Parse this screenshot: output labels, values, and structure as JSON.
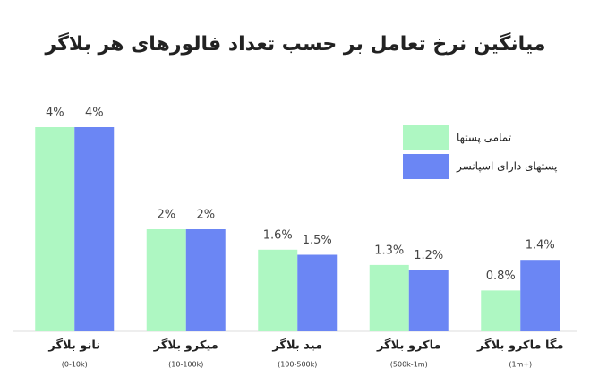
{
  "chart_data": {
    "type": "bar",
    "title": "میانگین نرخ تعامل بر حسب تعداد فالورهای هر بلاگر",
    "categories": [
      "نانو بلاگر",
      "میکرو بلاگر",
      "مید بلاگر",
      "ماکرو بلاگر",
      "مگا ماکرو بلاگر"
    ],
    "category_ranges": [
      "(0-10k)",
      "(10-100k)",
      "(100-500k)",
      "(500k-1m)",
      "(1m+)"
    ],
    "series": [
      {
        "name": "تمامی پستها",
        "color": "#aef7c2",
        "values": [
          4,
          2,
          1.6,
          1.3,
          0.8
        ],
        "value_labels": [
          "4%",
          "2%",
          "1.6%",
          "1.3%",
          "0.8%"
        ]
      },
      {
        "name": "پستهای دارای اسپانسر",
        "color": "#6b86f4",
        "values": [
          4,
          2,
          1.5,
          1.2,
          1.4
        ],
        "value_labels": [
          "4%",
          "2%",
          "1.5%",
          "1.2%",
          "1.4%"
        ]
      }
    ]
  }
}
